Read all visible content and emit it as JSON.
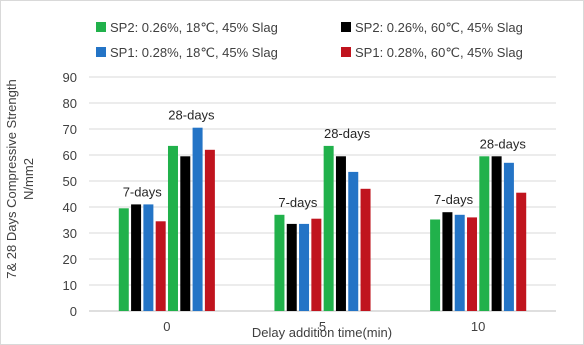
{
  "chart_data": {
    "type": "bar",
    "categories": [
      "0",
      "5",
      "10"
    ],
    "series": [
      {
        "name": "SP2: 0.26%, 18℃, 45% Slag",
        "color": "#21b14b",
        "values": [
          39.5,
          37,
          35.2
        ]
      },
      {
        "name": "SP2: 0.26%, 60℃, 45% Slag",
        "color": "#000000",
        "values": [
          41,
          33.5,
          38
        ]
      },
      {
        "name": "SP1: 0.28%, 18℃, 45% Slag",
        "color": "#2474c6",
        "values": [
          41,
          33.5,
          37
        ]
      },
      {
        "name": "SP1: 0.28%, 60℃, 45% Slag",
        "color": "#c0141e",
        "values": [
          34.5,
          35.5,
          36
        ]
      },
      {
        "name": "SP2: 0.26%, 18℃, 45% Slag",
        "color": "#21b14b",
        "values": [
          63.5,
          63.5,
          59.5
        ]
      },
      {
        "name": "SP2: 0.26%, 60℃, 45% Slag",
        "color": "#000000",
        "values": [
          59.5,
          59.5,
          59.5
        ]
      },
      {
        "name": "SP1: 0.28%, 18℃, 45% Slag",
        "color": "#2474c6",
        "values": [
          70.5,
          53.5,
          57
        ]
      },
      {
        "name": "SP1: 0.28%, 60℃, 45% Slag",
        "color": "#c0141e",
        "values": [
          62,
          47,
          45.5
        ]
      }
    ],
    "legend": [
      {
        "label": "SP2: 0.26%, 18℃, 45% Slag",
        "color": "#21b14b"
      },
      {
        "label": "SP2: 0.26%, 60℃, 45% Slag",
        "color": "#000000"
      },
      {
        "label": "SP1: 0.28%, 18℃, 45% Slag",
        "color": "#2474c6"
      },
      {
        "label": "SP1: 0.28%, 60℃, 45% Slag",
        "color": "#c0141e"
      }
    ],
    "annotations": {
      "early": "7-days",
      "late": "28-days"
    },
    "ylabel_line1": "7& 28 Days Compressive Strength",
    "ylabel_line2": "N/mm2",
    "xlabel": "Delay addition time(min)",
    "ylim": [
      0,
      90
    ],
    "yticks": [
      0,
      10,
      20,
      30,
      40,
      50,
      60,
      70,
      80,
      90
    ],
    "grid": true,
    "legend_position": "top"
  }
}
